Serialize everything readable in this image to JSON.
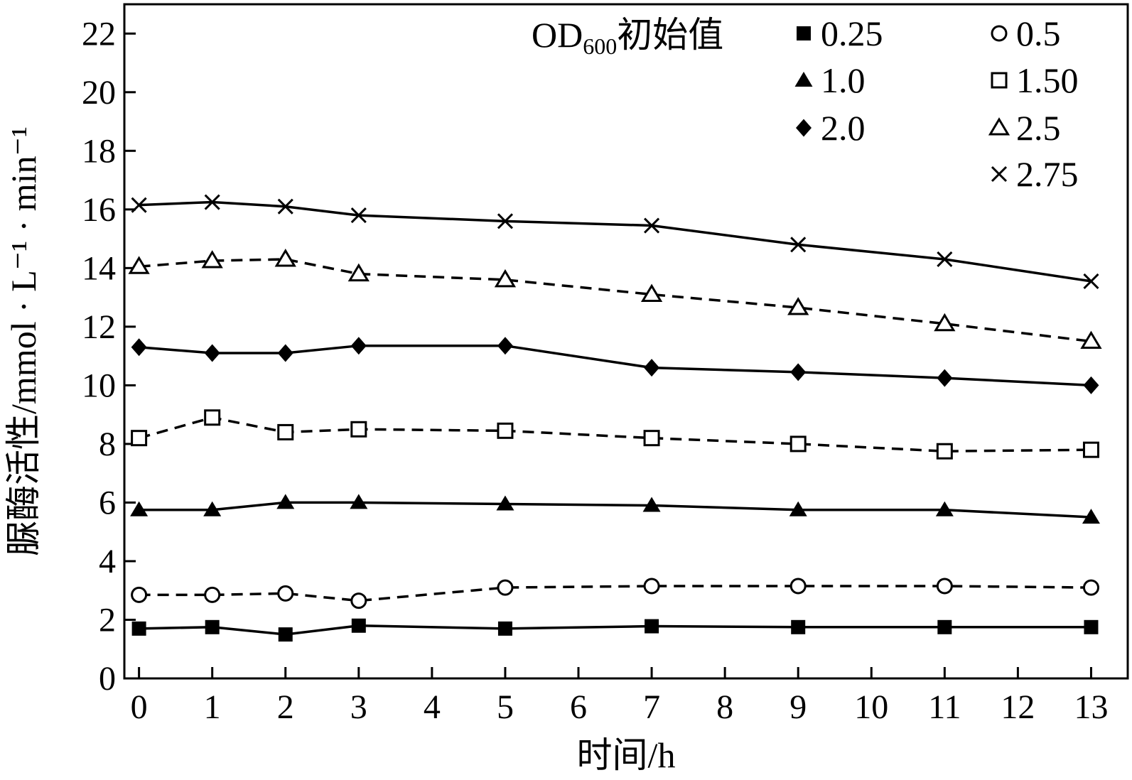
{
  "chart_data": {
    "type": "line",
    "xlabel": "时间/h",
    "ylabel": "脲酶活性/mmol · L⁻¹ · min⁻¹",
    "xlim": [
      -0.2,
      13.5
    ],
    "ylim": [
      0,
      23
    ],
    "x_ticks": [
      0,
      1,
      2,
      3,
      4,
      5,
      6,
      7,
      8,
      9,
      10,
      11,
      12,
      13
    ],
    "y_ticks": [
      0,
      2,
      4,
      6,
      8,
      10,
      12,
      14,
      16,
      18,
      20,
      22
    ],
    "x": [
      0,
      1,
      2,
      3,
      5,
      7,
      9,
      11,
      13
    ],
    "legend": {
      "title_main": "OD",
      "title_sub": "600",
      "title_suffix": "初始值",
      "placement": "top-right"
    },
    "series": [
      {
        "name": "0.25",
        "marker": "filled-square",
        "line": "solid",
        "values": [
          1.7,
          1.75,
          1.5,
          1.8,
          1.7,
          1.78,
          1.75,
          1.75,
          1.75
        ]
      },
      {
        "name": "0.5",
        "marker": "open-circle",
        "line": "dashed",
        "values": [
          2.85,
          2.85,
          2.9,
          2.65,
          3.1,
          3.15,
          3.15,
          3.15,
          3.1
        ]
      },
      {
        "name": "1.0",
        "marker": "filled-triangle",
        "line": "solid",
        "values": [
          5.75,
          5.75,
          6.0,
          6.0,
          5.95,
          5.9,
          5.75,
          5.75,
          5.5
        ]
      },
      {
        "name": "1.50",
        "marker": "open-square",
        "line": "dashed",
        "values": [
          8.2,
          8.9,
          8.4,
          8.5,
          8.45,
          8.2,
          8.0,
          7.75,
          7.8
        ]
      },
      {
        "name": "2.0",
        "marker": "filled-diamond",
        "line": "solid",
        "values": [
          11.3,
          11.1,
          11.1,
          11.35,
          11.35,
          10.6,
          10.45,
          10.25,
          10.0
        ]
      },
      {
        "name": "2.5",
        "marker": "open-triangle",
        "line": "dashed",
        "values": [
          14.05,
          14.25,
          14.3,
          13.8,
          13.6,
          13.1,
          12.65,
          12.1,
          11.5
        ]
      },
      {
        "name": "2.75",
        "marker": "cross",
        "line": "solid",
        "values": [
          16.15,
          16.25,
          16.1,
          15.8,
          15.6,
          15.45,
          14.8,
          14.3,
          13.55
        ]
      }
    ],
    "grid": false
  }
}
